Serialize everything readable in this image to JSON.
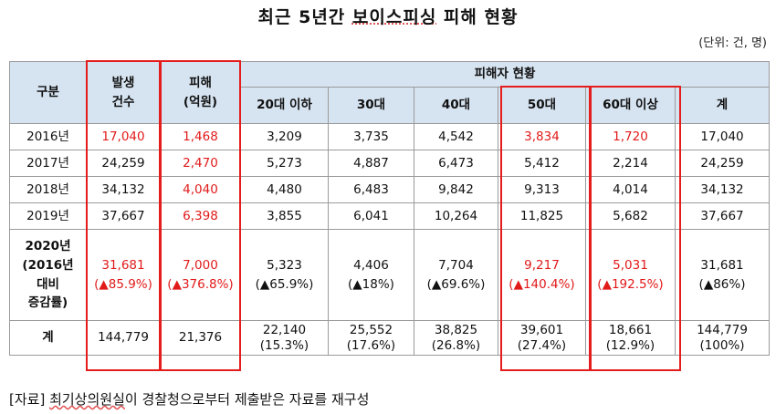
{
  "title_prefix": "최근 5년간 ",
  "title_underlined": "보이스피싱",
  "title_suffix": " 피해 현황",
  "unit": "(단위: 건, 명)",
  "header": {
    "category": "구분",
    "cases_line1": "발생",
    "cases_line2": "건수",
    "damage_line1": "피해",
    "damage_line2": "(억원)",
    "victims": "피해자 현황",
    "age_groups": [
      "20대 이하",
      "30대",
      "40대",
      "50대",
      "60대 이상",
      "계"
    ]
  },
  "rows": [
    {
      "label": "2016년",
      "cases": "17,040",
      "damage": "1,468",
      "ages": [
        "3,209",
        "3,735",
        "4,542",
        "3,834",
        "1,720",
        "17,040"
      ]
    },
    {
      "label": "2017년",
      "cases": "24,259",
      "damage": "2,470",
      "ages": [
        "5,273",
        "4,887",
        "6,473",
        "5,412",
        "2,214",
        "24,259"
      ]
    },
    {
      "label": "2018년",
      "cases": "34,132",
      "damage": "4,040",
      "ages": [
        "4,480",
        "6,483",
        "9,842",
        "9,313",
        "4,014",
        "34,132"
      ]
    },
    {
      "label": "2019년",
      "cases": "37,667",
      "damage": "6,398",
      "ages": [
        "3,855",
        "6,041",
        "10,264",
        "11,825",
        "5,682",
        "37,667"
      ]
    }
  ],
  "row2020": {
    "label_lines": [
      "2020년",
      "(2016년",
      "대비",
      "증감률)"
    ],
    "cases": "31,681",
    "cases_change": "(▲85.9%)",
    "damage": "7,000",
    "damage_change": "(▲376.8%)",
    "ages": [
      "5,323",
      "4,406",
      "7,704",
      "9,217",
      "5,031",
      "31,681"
    ],
    "ages_change": [
      "(▲65.9%)",
      "(▲18%)",
      "(▲69.6%)",
      "(▲140.4%)",
      "(▲192.5%)",
      "(▲86%)"
    ]
  },
  "total": {
    "label": "계",
    "cases": "144,779",
    "damage": "21,376",
    "ages": [
      "22,140",
      "25,552",
      "38,825",
      "39,601",
      "18,661",
      "144,779"
    ],
    "ages_share": [
      "(15.3%)",
      "(17.6%)",
      "(26.8%)",
      "(27.4%)",
      "(12.9%)",
      "(100%)"
    ]
  },
  "footer_prefix": "[자료] ",
  "footer_underlined": "최기상의원실",
  "footer_suffix": "이 경찰청으로부터 제출받은 자료를 재구성",
  "colors": {
    "highlight": "#e41c1c",
    "header_bg": "#d6e3f0"
  }
}
